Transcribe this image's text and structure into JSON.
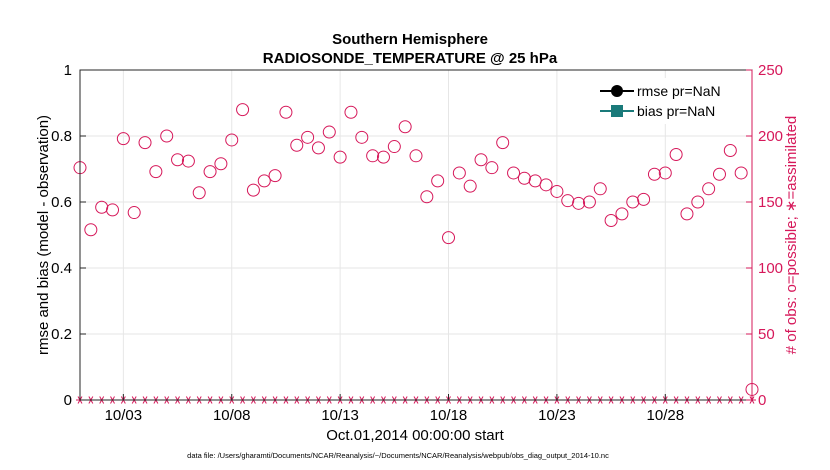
{
  "chart_data": {
    "type": "scatter",
    "title": [
      "Southern Hemisphere",
      "RADIOSONDE_TEMPERATURE @ 25 hPa"
    ],
    "xlabel": "Oct.01,2014 00:00:00 start",
    "ylabel_left": "rmse and bias (model - observation)",
    "ylabel_right": "# of obs: o=possible; ∗=assimilated",
    "x_range_days": [
      1,
      32
    ],
    "xticks": [
      {
        "day": 3,
        "label": "10/03"
      },
      {
        "day": 8,
        "label": "10/08"
      },
      {
        "day": 13,
        "label": "10/13"
      },
      {
        "day": 18,
        "label": "10/18"
      },
      {
        "day": 23,
        "label": "10/23"
      },
      {
        "day": 28,
        "label": "10/28"
      }
    ],
    "ylim_left": [
      0,
      1
    ],
    "yticks_left": [
      "0",
      "0.2",
      "0.4",
      "0.6",
      "0.8",
      "1"
    ],
    "yticks_left_values": [
      0,
      0.2,
      0.4,
      0.6,
      0.8,
      1
    ],
    "ylim_right": [
      0,
      250
    ],
    "yticks_right": [
      "0",
      "50",
      "100",
      "150",
      "200",
      "250"
    ],
    "yticks_right_values": [
      0,
      50,
      100,
      150,
      200,
      250
    ],
    "grid": true,
    "legend_position": "top-right",
    "legend": [
      {
        "label": "rmse pr=NaN",
        "color": "#000000",
        "marker": "circle"
      },
      {
        "label": "bias pr=NaN",
        "color": "#1a7a7a",
        "marker": "square"
      }
    ],
    "series": [
      {
        "name": "obs possible (00Z)",
        "marker": "open-circle",
        "color": "#d6185a",
        "x": [
          1.0,
          2.0,
          3.0,
          4.0,
          5.0,
          6.0,
          7.0,
          8.0,
          9.0,
          10.0,
          11.0,
          12.0,
          13.0,
          14.0,
          15.0,
          16.0,
          17.0,
          18.0,
          19.0,
          20.0,
          21.0,
          22.0,
          23.0,
          24.0,
          25.0,
          26.0,
          27.0,
          28.0,
          29.0,
          30.0,
          31.0,
          32.0
        ],
        "y": [
          176,
          146,
          198,
          195,
          200,
          181,
          173,
          197,
          159,
          170,
          193,
          191,
          184,
          199,
          184,
          207,
          154,
          123,
          162,
          176,
          172,
          166,
          158,
          149,
          160,
          141,
          152,
          172,
          141,
          160,
          189,
          8
        ]
      },
      {
        "name": "obs possible (12Z)",
        "marker": "open-circle",
        "color": "#d6185a",
        "x": [
          1.5,
          2.5,
          3.5,
          4.5,
          5.5,
          6.5,
          7.5,
          8.5,
          9.5,
          10.5,
          11.5,
          12.5,
          13.5,
          14.5,
          15.5,
          16.5,
          17.5,
          18.5,
          19.5,
          20.5,
          21.5,
          22.5,
          23.5,
          24.5,
          25.5,
          26.5,
          27.5,
          28.5,
          29.5,
          30.5,
          31.5
        ],
        "y": [
          129,
          144,
          142,
          173,
          182,
          157,
          179,
          220,
          166,
          218,
          199,
          203,
          218,
          185,
          192,
          185,
          166,
          172,
          182,
          195,
          168,
          163,
          151,
          150,
          136,
          150,
          171,
          186,
          150,
          171,
          172
        ]
      },
      {
        "name": "obs assimilated",
        "marker": "star",
        "color": "#d6185a",
        "x": [
          1.0,
          1.5,
          2.0,
          2.5,
          3.0,
          3.5,
          4.0,
          4.5,
          5.0,
          5.5,
          6.0,
          6.5,
          7.0,
          7.5,
          8.0,
          8.5,
          9.0,
          9.5,
          10.0,
          10.5,
          11.0,
          11.5,
          12.0,
          12.5,
          13.0,
          13.5,
          14.0,
          14.5,
          15.0,
          15.5,
          16.0,
          16.5,
          17.0,
          17.5,
          18.0,
          18.5,
          19.0,
          19.5,
          20.0,
          20.5,
          21.0,
          21.5,
          22.0,
          22.5,
          23.0,
          23.5,
          24.0,
          24.5,
          25.0,
          25.5,
          26.0,
          26.5,
          27.0,
          27.5,
          28.0,
          28.5,
          29.0,
          29.5,
          30.0,
          30.5,
          31.0,
          31.5,
          32.0
        ],
        "y": [
          0,
          0,
          0,
          0,
          0,
          0,
          0,
          0,
          0,
          0,
          0,
          0,
          0,
          0,
          0,
          0,
          0,
          0,
          0,
          0,
          0,
          0,
          0,
          0,
          0,
          0,
          0,
          0,
          0,
          0,
          0,
          0,
          0,
          0,
          0,
          0,
          0,
          0,
          0,
          0,
          0,
          0,
          0,
          0,
          0,
          0,
          0,
          0,
          0,
          0,
          0,
          0,
          0,
          0,
          0,
          0,
          0,
          0,
          0,
          0,
          0,
          0,
          0
        ]
      }
    ]
  },
  "footnote": "data file: /Users/gharamti/Documents/NCAR/Reanalysis/~/Documents/NCAR/Reanalysis/webpub/obs_diag_output_2014-10.nc"
}
